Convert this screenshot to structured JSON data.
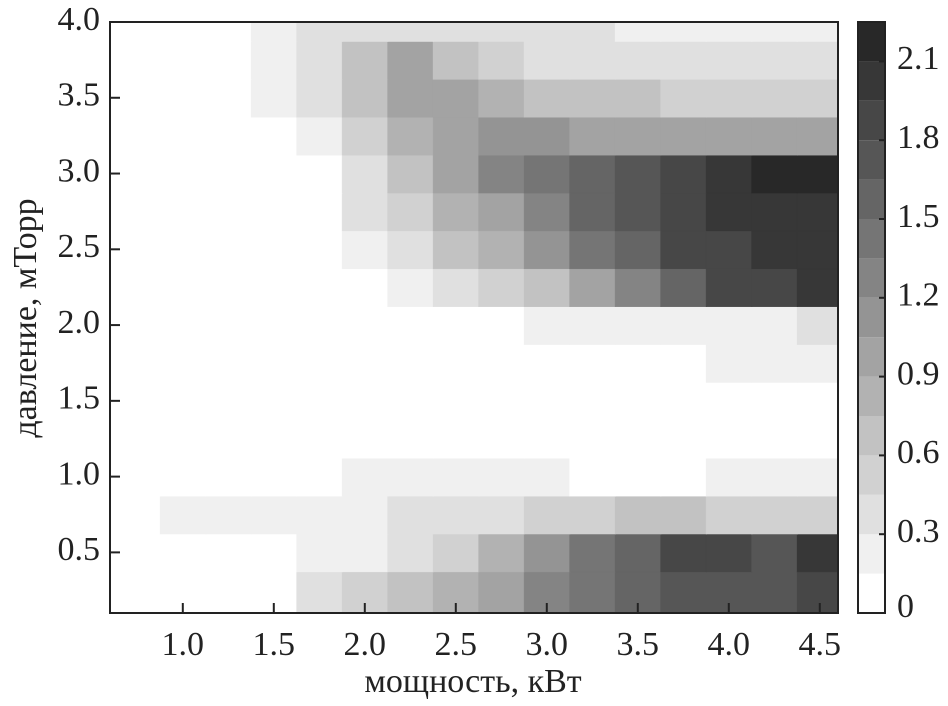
{
  "chart_data": {
    "type": "contour",
    "xlabel": "мощность, кВт",
    "ylabel": "давление, мТорр",
    "xlim": [
      0.6,
      4.6
    ],
    "ylim": [
      0.1,
      4.0
    ],
    "xticks": [
      {
        "value": 1.0,
        "label": "1.0"
      },
      1.5,
      {
        "value": 2.0,
        "label": "2.0"
      },
      2.5,
      {
        "value": 3.0,
        "label": "3.0"
      },
      3.5,
      {
        "value": 4.0,
        "label": "4.0"
      },
      4.5
    ],
    "yticks": [
      0.5,
      {
        "value": 1.0,
        "label": "1.0"
      },
      1.5,
      {
        "value": 2.0,
        "label": "2.0"
      },
      2.5,
      {
        "value": 3.0,
        "label": "3.0"
      },
      3.5,
      {
        "value": 4.0,
        "label": "4.0"
      }
    ],
    "levels": [
      0,
      0.15,
      0.3,
      0.45,
      0.6,
      0.75,
      0.9,
      1.05,
      1.2,
      1.35,
      1.5,
      1.65,
      1.8,
      1.95,
      2.1,
      2.25
    ],
    "zticks": [
      0,
      0.3,
      0.6,
      0.9,
      1.2,
      1.5,
      1.8,
      2.1
    ],
    "x": [
      0.75,
      1.0,
      1.25,
      1.5,
      1.75,
      2.0,
      2.25,
      2.5,
      2.75,
      3.0,
      3.25,
      3.5,
      3.75,
      4.0,
      4.25,
      4.5
    ],
    "y": [
      0.25,
      0.5,
      0.75,
      1.0,
      1.25,
      1.5,
      1.75,
      2.0,
      2.25,
      2.5,
      2.75,
      3.0,
      3.25,
      3.5,
      3.75,
      4.0
    ],
    "z": [
      [
        0,
        0,
        0,
        0.1,
        0.3,
        0.45,
        0.6,
        0.8,
        1.0,
        1.2,
        1.4,
        1.6,
        1.7,
        1.7,
        1.75,
        1.8
      ],
      [
        0,
        0,
        0,
        0,
        0.15,
        0.25,
        0.35,
        0.5,
        0.8,
        1.1,
        1.4,
        1.6,
        1.8,
        1.9,
        1.7,
        2.0
      ],
      [
        0,
        0.15,
        0.15,
        0.15,
        0.15,
        0.25,
        0.3,
        0.3,
        0.4,
        0.5,
        0.55,
        0.6,
        0.6,
        0.55,
        0.5,
        0.5
      ],
      [
        0,
        0,
        0,
        0,
        0,
        0.15,
        0.15,
        0.15,
        0.15,
        0.15,
        0.1,
        0.1,
        0.1,
        0.15,
        0.15,
        0.15
      ],
      [
        0,
        0,
        0,
        0,
        0,
        0,
        0,
        0,
        0,
        0,
        0,
        0,
        0,
        0,
        0,
        0
      ],
      [
        0,
        0,
        0,
        0,
        0,
        0,
        0,
        0,
        0,
        0,
        0,
        0,
        0,
        0,
        0,
        0
      ],
      [
        0,
        0,
        0,
        0,
        0,
        0,
        0,
        0,
        0,
        0,
        0.05,
        0.1,
        0.1,
        0.15,
        0.15,
        0.15
      ],
      [
        0,
        0,
        0,
        0,
        0,
        0,
        0,
        0.05,
        0.1,
        0.15,
        0.2,
        0.2,
        0.2,
        0.25,
        0.25,
        0.3
      ],
      [
        0,
        0,
        0,
        0,
        0,
        0.05,
        0.2,
        0.35,
        0.5,
        0.7,
        1.0,
        1.3,
        1.6,
        1.8,
        1.9,
        2.0
      ],
      [
        0,
        0,
        0,
        0,
        0,
        0.15,
        0.4,
        0.6,
        0.8,
        1.1,
        1.4,
        1.6,
        1.8,
        1.9,
        1.95,
        2.0
      ],
      [
        0,
        0,
        0,
        0,
        0.05,
        0.3,
        0.5,
        0.8,
        1.0,
        1.3,
        1.5,
        1.7,
        1.85,
        1.95,
        2.0,
        2.05
      ],
      [
        0,
        0,
        0,
        0,
        0.1,
        0.4,
        0.7,
        0.9,
        1.2,
        1.45,
        1.6,
        1.75,
        1.9,
        2.0,
        2.1,
        2.2
      ],
      [
        0,
        0,
        0,
        0.1,
        0.2,
        0.5,
        0.8,
        1.0,
        1.1,
        1.1,
        1.0,
        1.0,
        0.9,
        0.9,
        0.9,
        0.9
      ],
      [
        0,
        0,
        0,
        0.15,
        0.3,
        0.6,
        0.9,
        0.9,
        0.8,
        0.7,
        0.6,
        0.6,
        0.5,
        0.5,
        0.5,
        0.5
      ],
      [
        0,
        0,
        0,
        0.2,
        0.4,
        0.7,
        0.9,
        0.6,
        0.5,
        0.4,
        0.4,
        0.4,
        0.4,
        0.35,
        0.35,
        0.35
      ],
      [
        0,
        0,
        0,
        0.2,
        0.3,
        0.3,
        0.3,
        0.3,
        0.3,
        0.3,
        0.3,
        0.25,
        0.25,
        0.25,
        0.25,
        0.25
      ]
    ]
  }
}
